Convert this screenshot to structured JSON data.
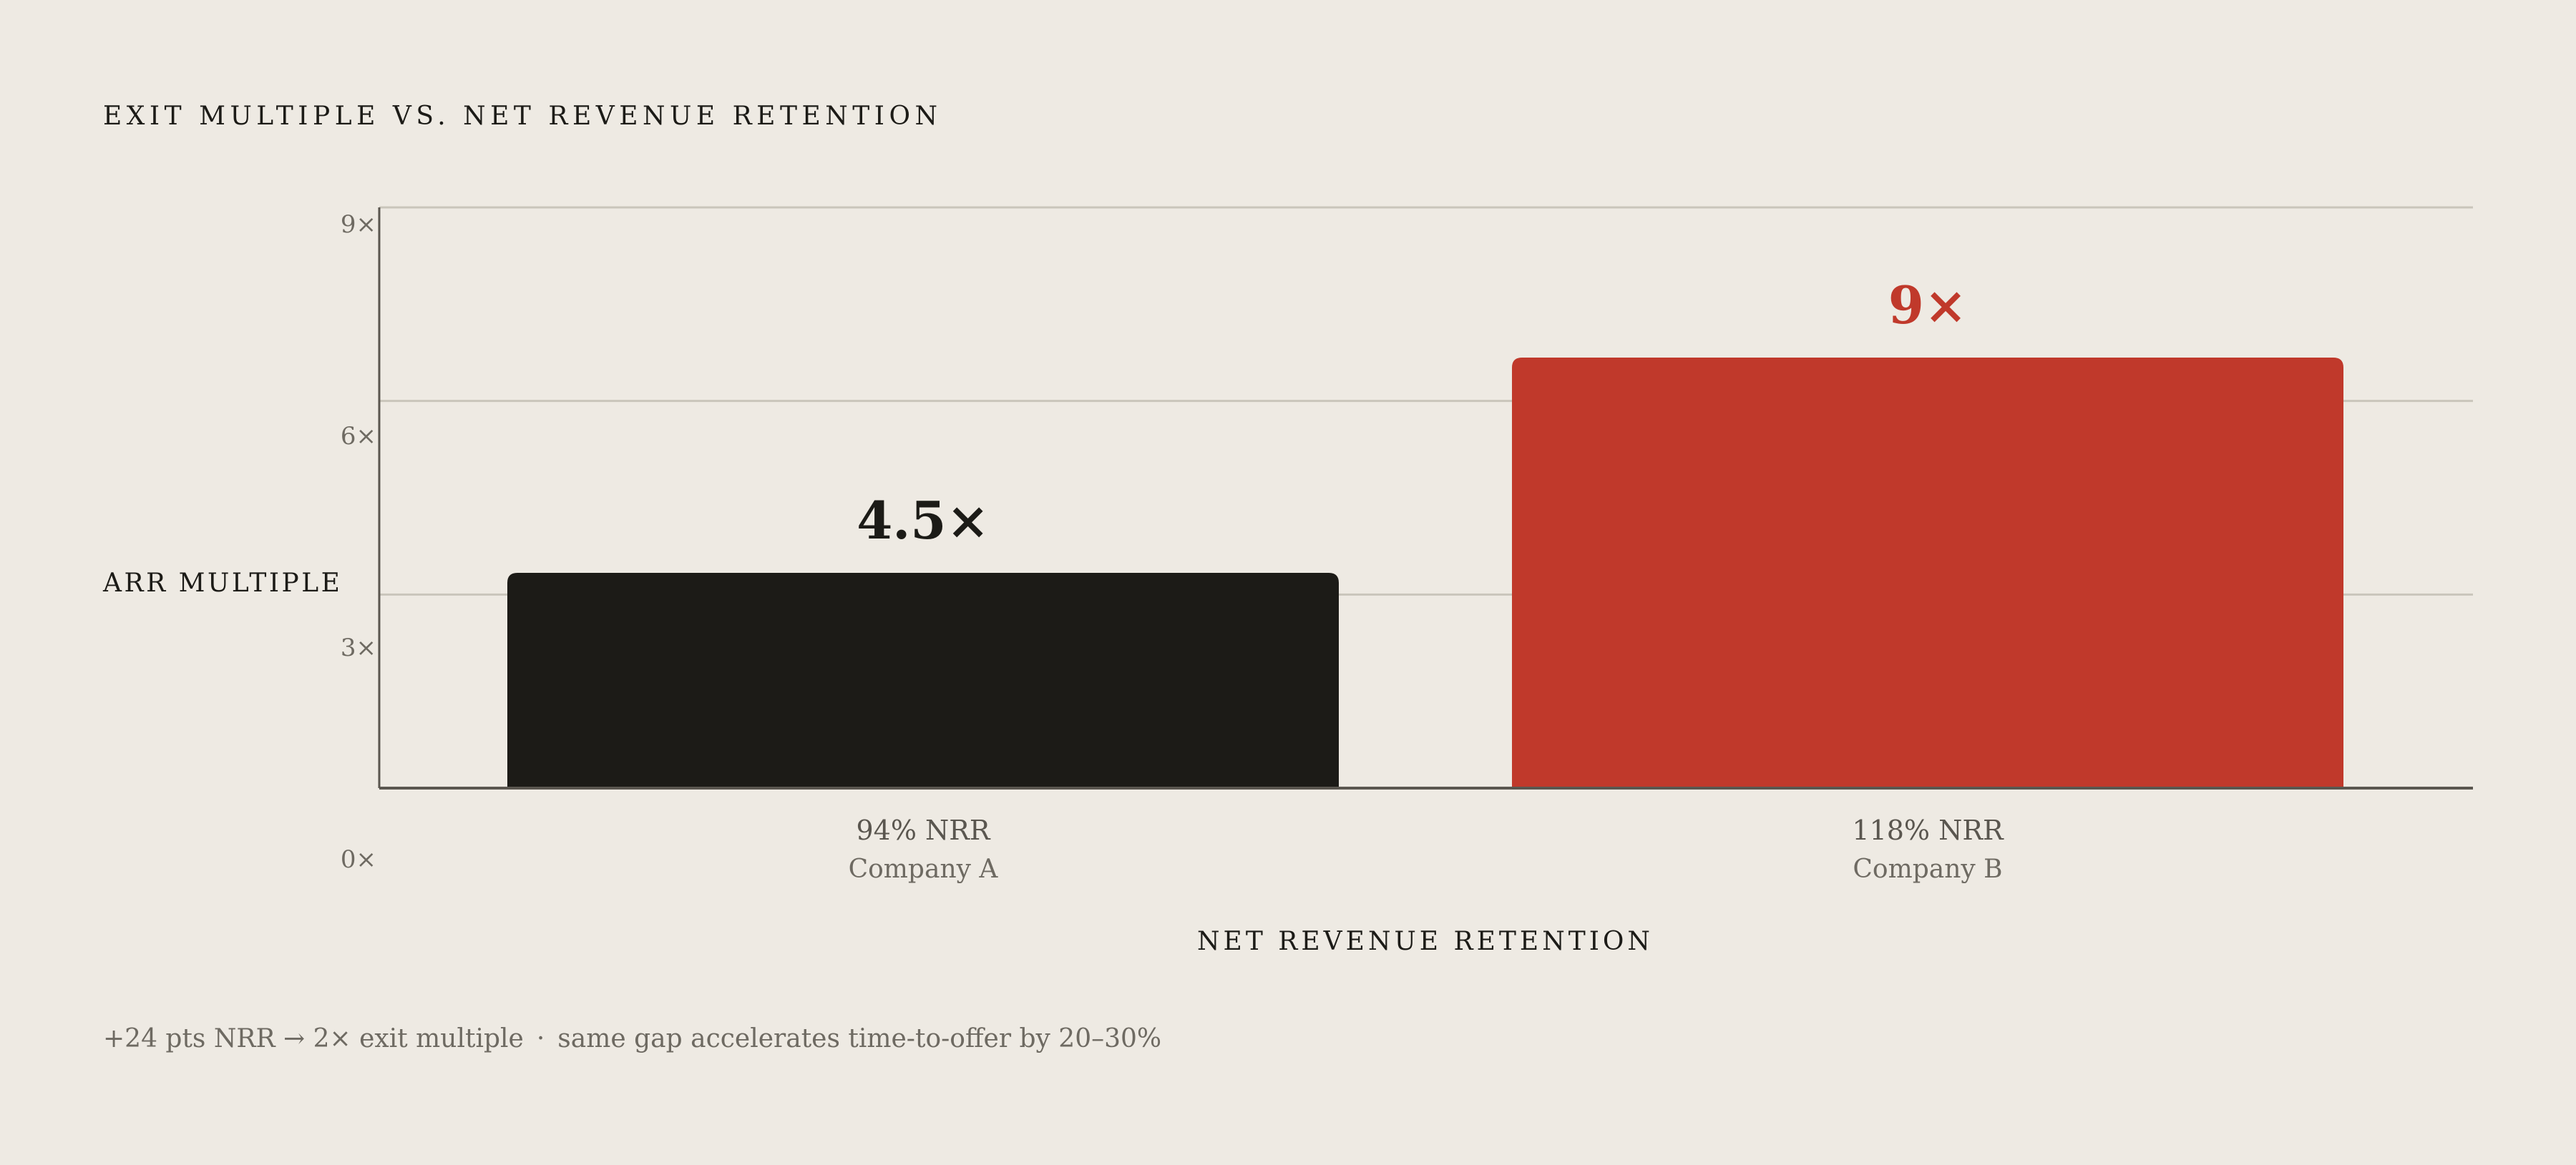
{
  "chart_data": {
    "type": "bar",
    "title": "EXIT MULTIPLE VS. NET REVENUE RETENTION",
    "ylabel": "ARR MULTIPLE",
    "xlabel": "NET REVENUE RETENTION",
    "ylim": [
      0,
      9
    ],
    "yticks": [
      {
        "value": 0,
        "label": "0×"
      },
      {
        "value": 3,
        "label": "3×"
      },
      {
        "value": 6,
        "label": "6×"
      },
      {
        "value": 9,
        "label": "9×"
      }
    ],
    "grid": true,
    "categories": [
      {
        "nrr": "94% NRR",
        "name": "Company A",
        "value": 4.5,
        "label": "4.5×",
        "color": "#1C1B17"
      },
      {
        "nrr": "118% NRR",
        "name": "Company B",
        "value": 9,
        "label": "9×",
        "color": "#C0392B"
      }
    ]
  },
  "footnote": {
    "part1": "+24 pts NRR → 2× exit multiple",
    "separator": "·",
    "part2": "same gap accelerates time-to-offer by 20–30%"
  },
  "colors": {
    "background": "#EEEAE3",
    "dark": "#1C1B17",
    "accent": "#C0392B",
    "grid": "#C9C5BB",
    "axis": "#5A564F"
  }
}
